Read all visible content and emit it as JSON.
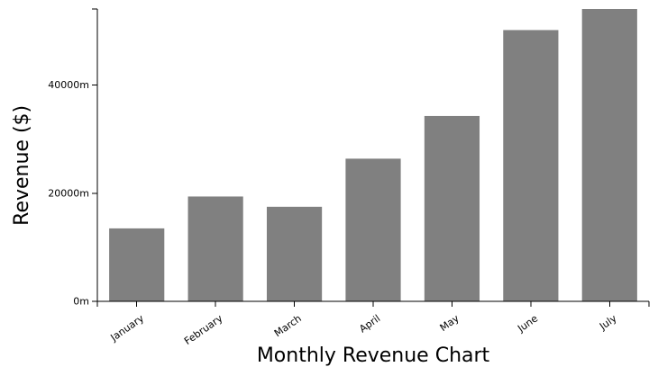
{
  "chart_data": {
    "type": "bar",
    "categories": [
      "January",
      "February",
      "March",
      "April",
      "May",
      "June",
      "July"
    ],
    "values": [
      13500,
      19400,
      17500,
      26400,
      34300,
      50200,
      54100
    ],
    "xlabel": "Monthly Revenue Chart",
    "ylabel": "Revenue ($)",
    "ylim": [
      0,
      54100
    ],
    "yticks": [
      {
        "value": 0,
        "label": "0m"
      },
      {
        "value": 20000,
        "label": "20000m"
      },
      {
        "value": 40000,
        "label": "40000m"
      }
    ],
    "bar_color": "#808080",
    "grid": false,
    "legend": "none"
  }
}
